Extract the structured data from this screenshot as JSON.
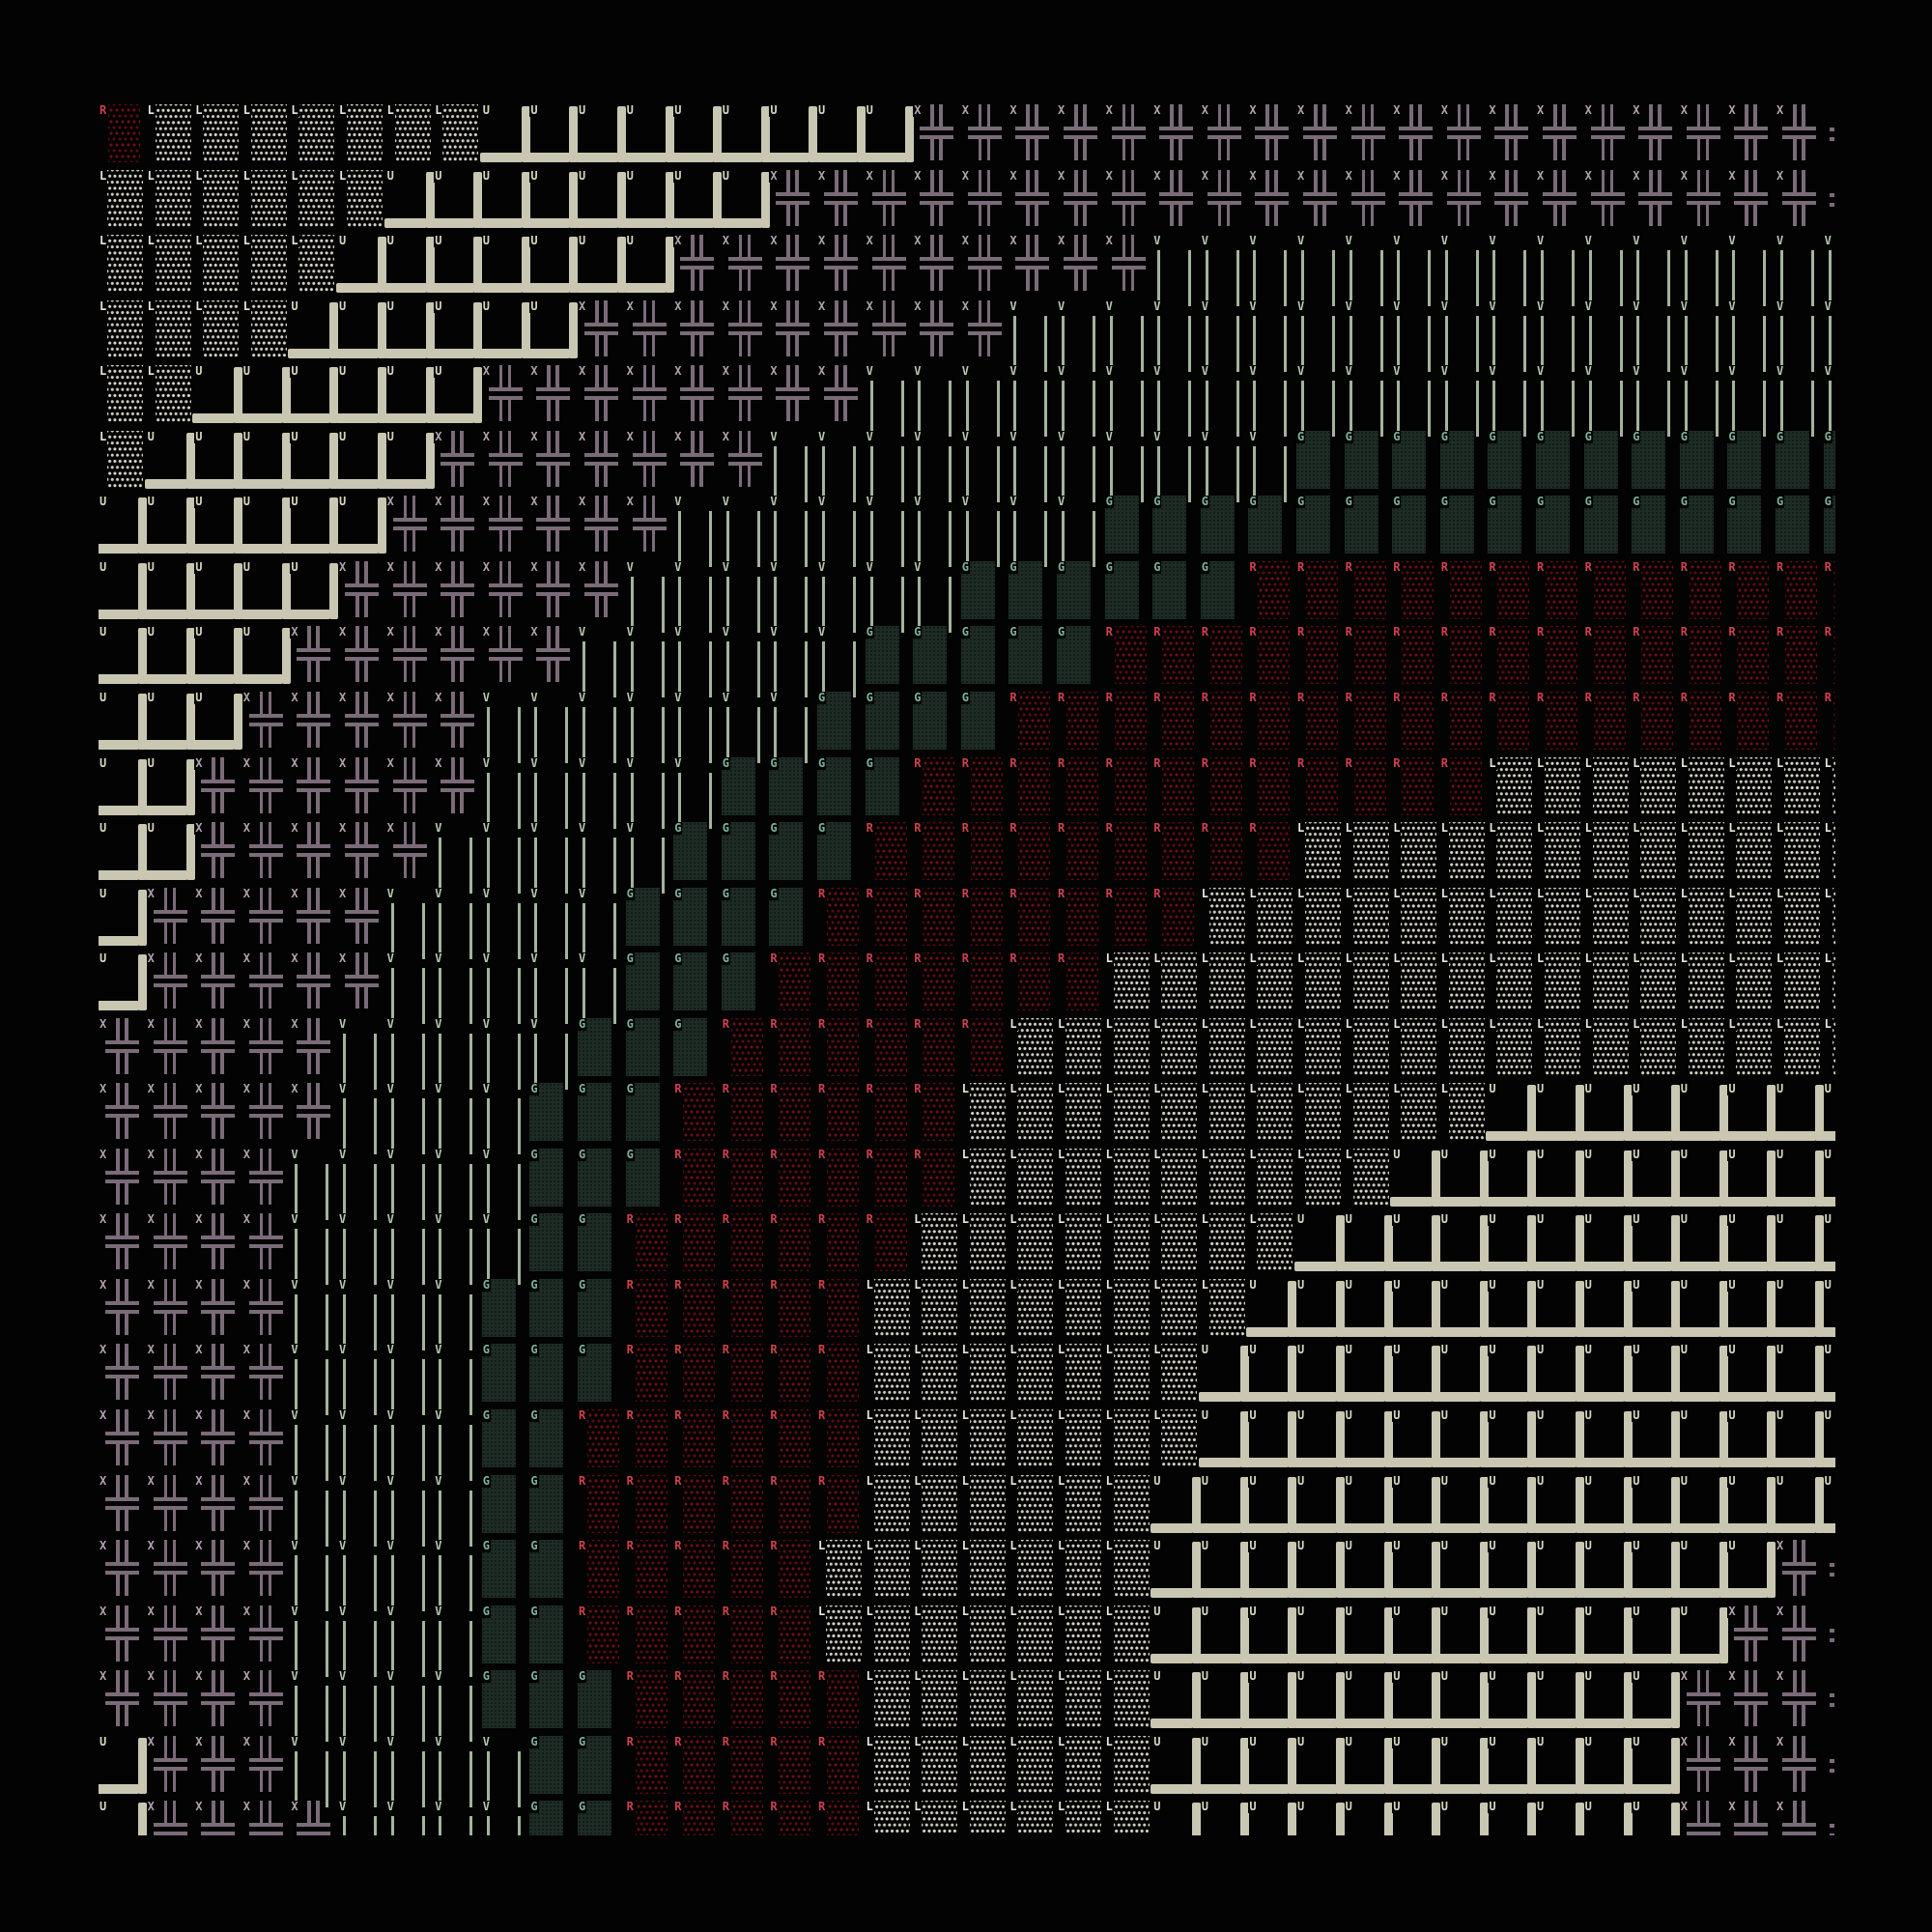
{
  "background": "#030303",
  "glyph_legend": {
    "L": {
      "char": "░",
      "color": "#d8d6cb"
    },
    "R": {
      "char": "░",
      "color": "#720d15"
    },
    "G": {
      "char": "▓",
      "color": "#1e2c26"
    },
    "V": {
      "char": "║",
      "color": "#a2b49c"
    },
    "U": {
      "char": "┴",
      "color": "#c9c7b1"
    },
    "X": {
      "char": "╬",
      "color": "#7b6b79"
    },
    "C": {
      "char": ":",
      "color": "#7b6b79"
    }
  },
  "rows": [
    "RLLLLLLLUUUUUUUUUXXXXXXXXXXXXXXXXXXXC",
    "LLLLLLUUUUUUUUXXXXXXXXXXXXXXXXXXXXXXC",
    "LLLLLUUUUUUUXXXXXXXXXXVVVVVVVVVVVVVVV",
    "LLLLUUUUUUXXXXXXXXXVVVVVVVVVVVVVVVVVV",
    "LLUUUUUUXXXXXXXXVVVVVVVVVVVVVVVVVVVVV",
    "LUUUUUUXXXXXXXVVVVVVVVVVVGGGGGGGGGGGG",
    "UUUUUUXXXXXXVVVVVVVVVGGGGGGGGGGGGGGGG",
    "UUUUUXXXXXXVVVVVVVGGGGGGRRRRRRRRRRRRR",
    "UUUUXXXXXXVVVVVVGGGGGRRRRRRRRRRRRRRRR",
    "UUUXXXXXVVVVVVVGGGGRRRRRRRRRRRRRRRRRR",
    "UUXXXXXXVVVVVGGGGRRRRRRRRRRRRLLLLLLLL",
    "UUXXXXXVVVVVGGGGRRRRRRRRRLLLLLLLLLLLL",
    "UXXXXXVVVVVGGGGRRRRRRRRLLLLLLLLLLLLLL",
    "UXXXXXVVVVVGGGRRRRRRRLLLLLLLLLLLLLLLL",
    "XXXXXVVVVVGGGRRRRRRLLLLLLLLLLLLLLLLLL",
    "XXXXXVVVVGGGRRRRRRLLLLLLLLLLLUUUUUUUU",
    "XXXXVVVVVGGGRRRRRRLLLLLLLLLUUUUUUUUUU",
    "XXXXVVVVVGGRRRRRRLLLLLLLLUUUUUUUUUUUU",
    "XXXXVVVVGGGRRRRRLLLLLLLLUUUUUUUUUUUUU",
    "XXXXVVVVGGGRRRRRLLLLLLLUUUUUUUUUUUUUU",
    "XXXXVVVVGGRRRRRRLLLLLLLUUUUUUUUUUUUUU",
    "XXXXVVVVGGRRRRRRLLLLLLUUUUUUUUUUUUUUU",
    "XXXXVVVVGGRRRRRLLLLLLLUUUUUUUUUUUUUXC",
    "XXXXVVVVGGRRRRRLLLLLLLUUUUUUUUUUUUXXC",
    "XXXXVVVVGGGRRRRRLLLLLLUUUUUUUUUUUXXXC",
    "UXXXVVVVVGGRRRRRLLLLLLUUUUUUUUUUUXXXC",
    "UXXXXVVVVGGRRRRRLLLLLLUUUUUUUUUUUXXXC"
  ]
}
